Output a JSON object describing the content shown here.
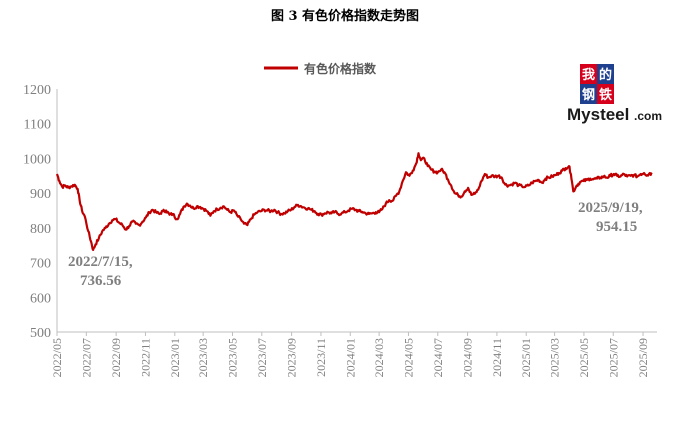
{
  "figure_title": "图 3   有色价格指数走势图",
  "colors": {
    "series": "#c00000",
    "axis": "#bfbfbf",
    "text": "#7f7f7f",
    "logo_red": "#d6001c",
    "logo_blue": "#1f3f8f"
  },
  "logo": {
    "cjk": [
      "我",
      "的",
      "钢",
      "铁"
    ],
    "word": "Mysteel",
    "suffix": ".com"
  },
  "chart_data": {
    "type": "line",
    "title": "",
    "legend": "有色价格指数",
    "legend_position": "top",
    "grid": false,
    "ylim": [
      500,
      1200
    ],
    "yticks": [
      500,
      600,
      700,
      800,
      900,
      1000,
      1100,
      1200
    ],
    "x_range": [
      "2022-05-01",
      "2025-09-30"
    ],
    "xtick_labels": [
      "2022/05",
      "2022/07",
      "2022/09",
      "2022/11",
      "2023/01",
      "2023/03",
      "2023/05",
      "2023/07",
      "2023/09",
      "2023/11",
      "2024/01",
      "2024/03",
      "2024/05",
      "2024/07",
      "2024/09",
      "2024/11",
      "2025/01",
      "2025/03",
      "2025/05",
      "2025/07",
      "2025/09"
    ],
    "series": [
      {
        "name": "有色价格指数",
        "points": [
          [
            "2022-05-01",
            955
          ],
          [
            "2022-05-06",
            935
          ],
          [
            "2022-05-12",
            918
          ],
          [
            "2022-05-18",
            922
          ],
          [
            "2022-05-24",
            916
          ],
          [
            "2022-05-31",
            920
          ],
          [
            "2022-06-07",
            924
          ],
          [
            "2022-06-13",
            912
          ],
          [
            "2022-06-17",
            880
          ],
          [
            "2022-06-22",
            850
          ],
          [
            "2022-06-28",
            832
          ],
          [
            "2022-07-05",
            790
          ],
          [
            "2022-07-11",
            760
          ],
          [
            "2022-07-15",
            736.56
          ],
          [
            "2022-07-20",
            752
          ],
          [
            "2022-07-27",
            770
          ],
          [
            "2022-08-03",
            790
          ],
          [
            "2022-08-10",
            800
          ],
          [
            "2022-08-17",
            812
          ],
          [
            "2022-08-24",
            822
          ],
          [
            "2022-08-31",
            825
          ],
          [
            "2022-09-07",
            815
          ],
          [
            "2022-09-14",
            808
          ],
          [
            "2022-09-21",
            795
          ],
          [
            "2022-09-28",
            805
          ],
          [
            "2022-10-05",
            818
          ],
          [
            "2022-10-12",
            812
          ],
          [
            "2022-10-19",
            808
          ],
          [
            "2022-10-26",
            818
          ],
          [
            "2022-11-02",
            830
          ],
          [
            "2022-11-09",
            845
          ],
          [
            "2022-11-16",
            852
          ],
          [
            "2022-11-23",
            845
          ],
          [
            "2022-11-30",
            840
          ],
          [
            "2022-12-07",
            848
          ],
          [
            "2022-12-14",
            850
          ],
          [
            "2022-12-21",
            838
          ],
          [
            "2022-12-28",
            840
          ],
          [
            "2023-01-05",
            825
          ],
          [
            "2023-01-12",
            840
          ],
          [
            "2023-01-19",
            860
          ],
          [
            "2023-01-26",
            870
          ],
          [
            "2023-02-02",
            864
          ],
          [
            "2023-02-09",
            856
          ],
          [
            "2023-02-16",
            862
          ],
          [
            "2023-02-23",
            860
          ],
          [
            "2023-03-02",
            855
          ],
          [
            "2023-03-09",
            848
          ],
          [
            "2023-03-16",
            835
          ],
          [
            "2023-03-23",
            848
          ],
          [
            "2023-03-30",
            854
          ],
          [
            "2023-04-06",
            858
          ],
          [
            "2023-04-13",
            862
          ],
          [
            "2023-04-20",
            852
          ],
          [
            "2023-04-27",
            845
          ],
          [
            "2023-05-04",
            850
          ],
          [
            "2023-05-11",
            835
          ],
          [
            "2023-05-18",
            825
          ],
          [
            "2023-05-25",
            812
          ],
          [
            "2023-06-01",
            808
          ],
          [
            "2023-06-08",
            825
          ],
          [
            "2023-06-15",
            838
          ],
          [
            "2023-06-22",
            845
          ],
          [
            "2023-06-29",
            848
          ],
          [
            "2023-07-06",
            852
          ],
          [
            "2023-07-13",
            850
          ],
          [
            "2023-07-20",
            848
          ],
          [
            "2023-07-27",
            852
          ],
          [
            "2023-08-03",
            845
          ],
          [
            "2023-08-10",
            840
          ],
          [
            "2023-08-17",
            842
          ],
          [
            "2023-08-24",
            848
          ],
          [
            "2023-08-31",
            852
          ],
          [
            "2023-09-07",
            860
          ],
          [
            "2023-09-14",
            866
          ],
          [
            "2023-09-21",
            862
          ],
          [
            "2023-09-28",
            858
          ],
          [
            "2023-10-05",
            856
          ],
          [
            "2023-10-12",
            852
          ],
          [
            "2023-10-19",
            848
          ],
          [
            "2023-10-26",
            840
          ],
          [
            "2023-11-02",
            838
          ],
          [
            "2023-11-09",
            842
          ],
          [
            "2023-11-16",
            845
          ],
          [
            "2023-11-23",
            842
          ],
          [
            "2023-11-30",
            846
          ],
          [
            "2023-12-07",
            840
          ],
          [
            "2023-12-14",
            842
          ],
          [
            "2023-12-21",
            845
          ],
          [
            "2023-12-28",
            850
          ],
          [
            "2024-01-05",
            855
          ],
          [
            "2024-01-12",
            852
          ],
          [
            "2024-01-19",
            848
          ],
          [
            "2024-01-26",
            846
          ],
          [
            "2024-02-02",
            842
          ],
          [
            "2024-02-09",
            840
          ],
          [
            "2024-02-16",
            842
          ],
          [
            "2024-02-23",
            845
          ],
          [
            "2024-03-01",
            845
          ],
          [
            "2024-03-08",
            855
          ],
          [
            "2024-03-15",
            870
          ],
          [
            "2024-03-22",
            880
          ],
          [
            "2024-03-29",
            878
          ],
          [
            "2024-04-05",
            892
          ],
          [
            "2024-04-12",
            905
          ],
          [
            "2024-04-19",
            935
          ],
          [
            "2024-04-26",
            960
          ],
          [
            "2024-05-03",
            950
          ],
          [
            "2024-05-10",
            965
          ],
          [
            "2024-05-17",
            985
          ],
          [
            "2024-05-22",
            1015
          ],
          [
            "2024-05-27",
            995
          ],
          [
            "2024-06-03",
            1000
          ],
          [
            "2024-06-10",
            978
          ],
          [
            "2024-06-17",
            968
          ],
          [
            "2024-06-24",
            962
          ],
          [
            "2024-07-01",
            960
          ],
          [
            "2024-07-08",
            968
          ],
          [
            "2024-07-15",
            960
          ],
          [
            "2024-07-22",
            940
          ],
          [
            "2024-07-29",
            922
          ],
          [
            "2024-08-05",
            900
          ],
          [
            "2024-08-12",
            895
          ],
          [
            "2024-08-19",
            890
          ],
          [
            "2024-08-26",
            905
          ],
          [
            "2024-09-02",
            915
          ],
          [
            "2024-09-09",
            895
          ],
          [
            "2024-09-16",
            898
          ],
          [
            "2024-09-23",
            910
          ],
          [
            "2024-09-30",
            935
          ],
          [
            "2024-10-07",
            955
          ],
          [
            "2024-10-14",
            945
          ],
          [
            "2024-10-21",
            950
          ],
          [
            "2024-10-28",
            948
          ],
          [
            "2024-11-04",
            950
          ],
          [
            "2024-11-11",
            945
          ],
          [
            "2024-11-18",
            925
          ],
          [
            "2024-11-25",
            922
          ],
          [
            "2024-12-02",
            925
          ],
          [
            "2024-12-09",
            930
          ],
          [
            "2024-12-16",
            922
          ],
          [
            "2024-12-23",
            920
          ],
          [
            "2024-12-30",
            918
          ],
          [
            "2025-01-06",
            922
          ],
          [
            "2025-01-13",
            930
          ],
          [
            "2025-01-20",
            935
          ],
          [
            "2025-01-27",
            938
          ],
          [
            "2025-02-03",
            930
          ],
          [
            "2025-02-10",
            942
          ],
          [
            "2025-02-17",
            945
          ],
          [
            "2025-02-24",
            948
          ],
          [
            "2025-03-03",
            952
          ],
          [
            "2025-03-10",
            958
          ],
          [
            "2025-03-17",
            965
          ],
          [
            "2025-03-24",
            972
          ],
          [
            "2025-03-31",
            978
          ],
          [
            "2025-04-04",
            955
          ],
          [
            "2025-04-09",
            905
          ],
          [
            "2025-04-16",
            922
          ],
          [
            "2025-04-23",
            932
          ],
          [
            "2025-04-30",
            935
          ],
          [
            "2025-05-07",
            938
          ],
          [
            "2025-05-14",
            942
          ],
          [
            "2025-05-21",
            940
          ],
          [
            "2025-05-28",
            942
          ],
          [
            "2025-06-04",
            945
          ],
          [
            "2025-06-11",
            948
          ],
          [
            "2025-06-18",
            945
          ],
          [
            "2025-06-25",
            950
          ],
          [
            "2025-07-02",
            955
          ],
          [
            "2025-07-09",
            950
          ],
          [
            "2025-07-16",
            948
          ],
          [
            "2025-07-23",
            955
          ],
          [
            "2025-07-30",
            948
          ],
          [
            "2025-08-06",
            950
          ],
          [
            "2025-08-13",
            952
          ],
          [
            "2025-08-20",
            948
          ],
          [
            "2025-08-27",
            955
          ],
          [
            "2025-09-03",
            958
          ],
          [
            "2025-09-10",
            952
          ],
          [
            "2025-09-15",
            958
          ],
          [
            "2025-09-19",
            954.15
          ]
        ]
      }
    ],
    "annotations": [
      {
        "date": "2022-07-15",
        "value": 736.56,
        "line1": "2022/7/15,",
        "line2": "736.56"
      },
      {
        "date": "2025-09-19",
        "value": 954.15,
        "line1": "2025/9/19,",
        "line2": "954.15"
      }
    ]
  }
}
